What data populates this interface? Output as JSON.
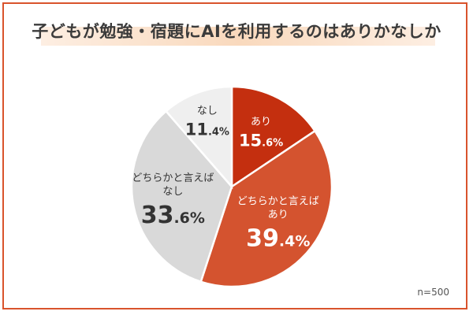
{
  "chart_data": {
    "type": "pie",
    "title": "子どもが勉強・宿題にAIを利用するのはありかなしか",
    "note": "n=500",
    "slices": [
      {
        "label_lines": [
          "あり"
        ],
        "value": 15.6,
        "value_int": "15",
        "value_dec": ".6%",
        "color": "#c42f0f",
        "text_color": "#ffffff"
      },
      {
        "label_lines": [
          "どちらかと言えば",
          "あり"
        ],
        "value": 39.4,
        "value_int": "39",
        "value_dec": ".4%",
        "color": "#d4532f",
        "text_color": "#ffffff"
      },
      {
        "label_lines": [
          "どちらかと言えば",
          "なし"
        ],
        "value": 33.6,
        "value_int": "33",
        "value_dec": ".6%",
        "color": "#d9d9d9",
        "text_color": "#333333"
      },
      {
        "label_lines": [
          "なし"
        ],
        "value": 11.4,
        "value_int": "11",
        "value_dec": ".4%",
        "color": "#efefef",
        "text_color": "#333333"
      }
    ]
  }
}
